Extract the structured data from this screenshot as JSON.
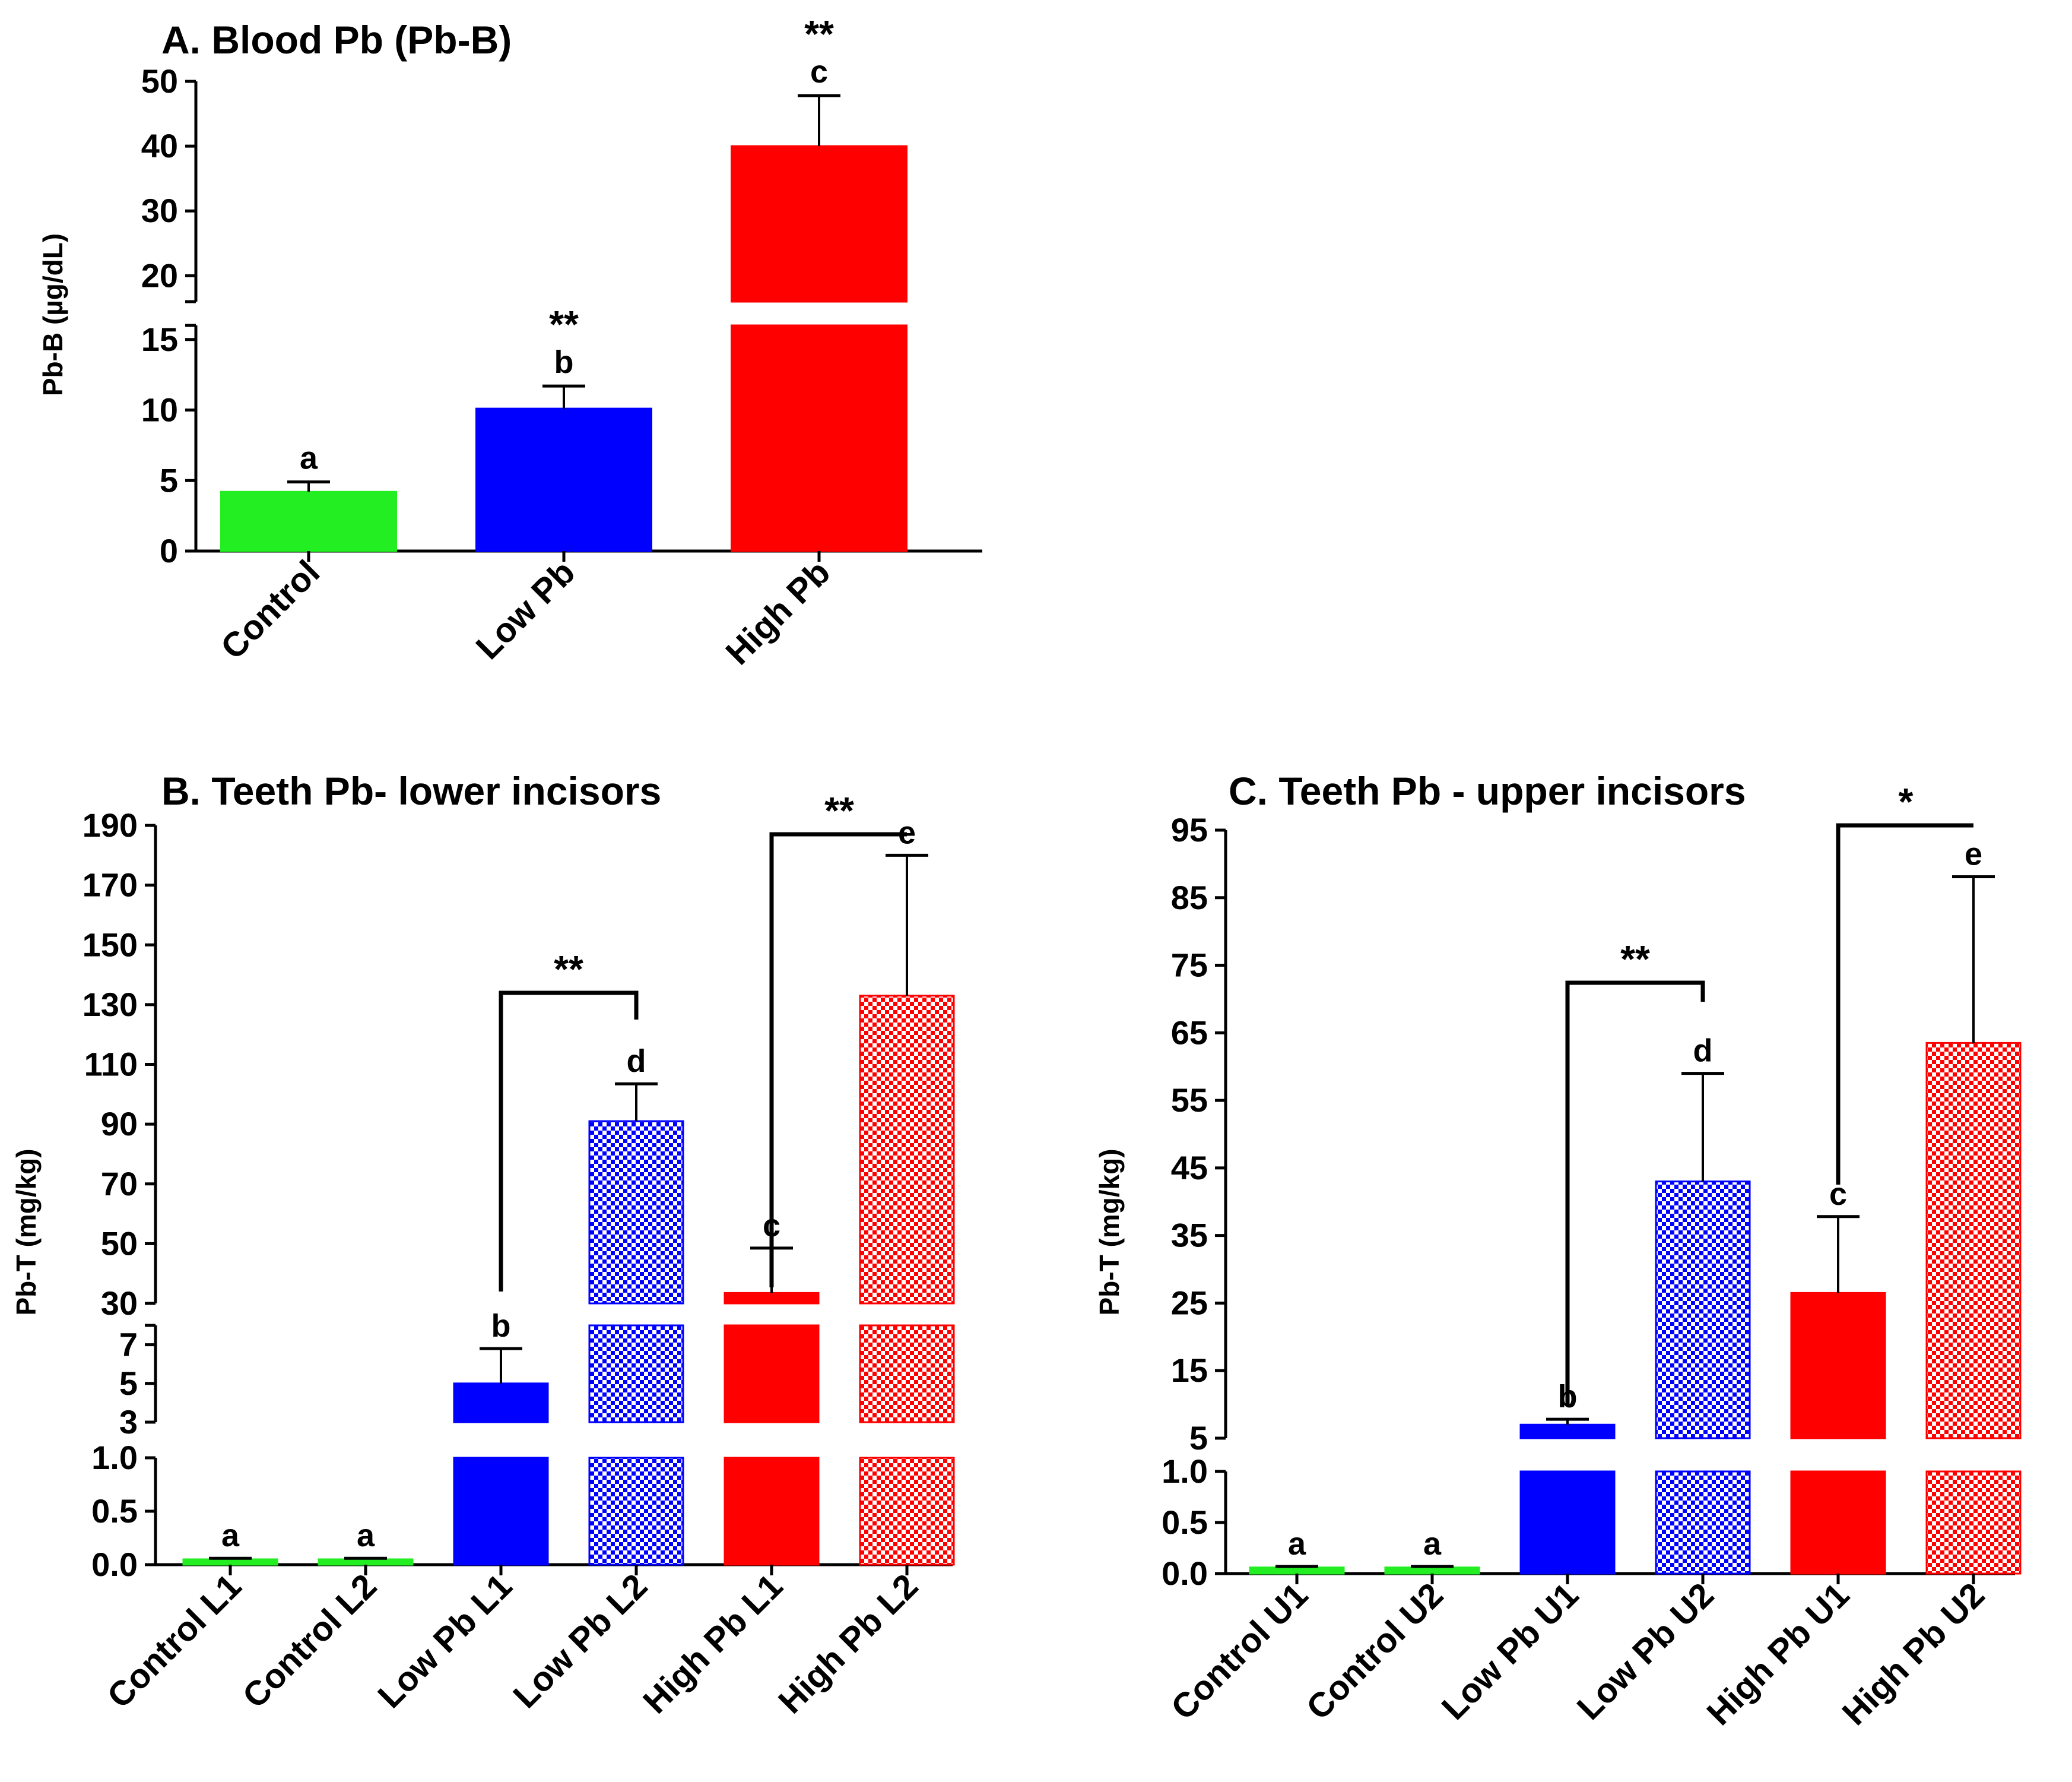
{
  "chart_data": [
    {
      "id": "A",
      "type": "bar",
      "title": "A. Blood Pb (Pb-B)",
      "ylabel": "Pb-B (µg/dL)",
      "xlabel": "",
      "axis_break": true,
      "ylim": [
        0,
        50
      ],
      "segments": [
        {
          "range": [
            0,
            16
          ],
          "ticks": [
            0,
            5,
            10,
            15
          ]
        },
        {
          "range": [
            16,
            50
          ],
          "ticks": [
            20,
            30,
            40,
            50
          ]
        }
      ],
      "categories": [
        "Control",
        "Low Pb",
        "High Pb"
      ],
      "values": [
        4.2,
        10.1,
        40.0
      ],
      "errors": [
        0.7,
        1.6,
        7.8
      ],
      "letters": [
        "a",
        "b",
        "c"
      ],
      "stars": [
        "",
        "**",
        "**"
      ],
      "fills": [
        "solid",
        "solid",
        "solid"
      ],
      "colors": [
        "#22ee22",
        "#0000ff",
        "#ff0000"
      ]
    },
    {
      "id": "B",
      "type": "bar",
      "title": "B. Teeth Pb- lower incisors",
      "ylabel": "Pb-T (mg/kg)",
      "xlabel": "",
      "axis_break": true,
      "ylim": [
        0,
        190
      ],
      "segments": [
        {
          "range": [
            0,
            1.0
          ],
          "ticks": [
            0.0,
            0.5,
            1.0
          ],
          "fmt": 1
        },
        {
          "range": [
            3,
            8
          ],
          "ticks": [
            3,
            5,
            7
          ]
        },
        {
          "range": [
            30,
            190
          ],
          "ticks": [
            30,
            50,
            70,
            90,
            110,
            130,
            150,
            170,
            190
          ]
        }
      ],
      "categories": [
        "Control L1",
        "Control L2",
        "Low Pb L1",
        "Low Pb L2",
        "High Pb L1",
        "High Pb L2"
      ],
      "values": [
        0.05,
        0.05,
        5.0,
        91.0,
        33.5,
        133.0
      ],
      "errors": [
        0.01,
        0.01,
        1.8,
        12.5,
        15.0,
        47.0
      ],
      "letters": [
        "a",
        "a",
        "b",
        "d",
        "c",
        "e"
      ],
      "fills": [
        "solid",
        "solid",
        "solid",
        "checker",
        "solid",
        "checker"
      ],
      "colors": [
        "#22ee22",
        "#22ee22",
        "#0000ff",
        "#0000ff",
        "#ff0000",
        "#ff0000"
      ],
      "comparisons": [
        {
          "from": 2,
          "to": 3,
          "label": "**"
        },
        {
          "from": 4,
          "to": 5,
          "label": "**"
        }
      ]
    },
    {
      "id": "C",
      "type": "bar",
      "title": "C. Teeth Pb - upper incisors",
      "ylabel": "Pb-T (mg/kg)",
      "xlabel": "",
      "axis_break": true,
      "ylim": [
        0,
        95
      ],
      "segments": [
        {
          "range": [
            0,
            1.0
          ],
          "ticks": [
            0.0,
            0.5,
            1.0
          ],
          "fmt": 1
        },
        {
          "range": [
            5,
            95
          ],
          "ticks": [
            5,
            15,
            25,
            35,
            45,
            55,
            65,
            75,
            85,
            95
          ]
        }
      ],
      "categories": [
        "Control U1",
        "Control U2",
        "Low Pb U1",
        "Low Pb U2",
        "High Pb U1",
        "High Pb U2"
      ],
      "values": [
        0.06,
        0.06,
        7.0,
        43.0,
        26.5,
        63.5
      ],
      "errors": [
        0.01,
        0.01,
        0.8,
        16.0,
        11.3,
        24.6
      ],
      "letters": [
        "a",
        "a",
        "b",
        "d",
        "c",
        "e"
      ],
      "fills": [
        "solid",
        "solid",
        "solid",
        "checker",
        "solid",
        "checker"
      ],
      "colors": [
        "#22ee22",
        "#22ee22",
        "#0000ff",
        "#0000ff",
        "#ff0000",
        "#ff0000"
      ],
      "comparisons": [
        {
          "from": 2,
          "to": 3,
          "label": "**"
        },
        {
          "from": 4,
          "to": 5,
          "label": "*"
        }
      ]
    }
  ]
}
